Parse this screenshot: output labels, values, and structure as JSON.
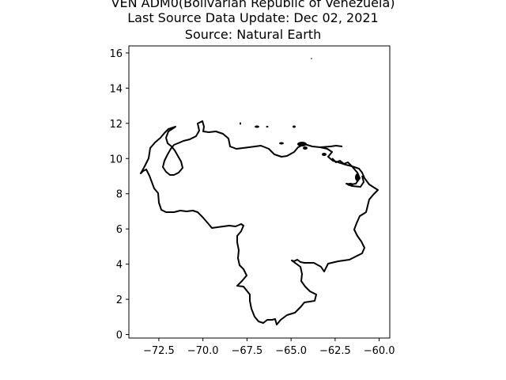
{
  "title": {
    "line1": "VEN ADM0(Bolivarian Republic of Venezuela)",
    "line2": "Last Source Data Update: Dec 02, 2021",
    "line3": "Source: Natural Earth"
  },
  "chart_data": {
    "type": "map",
    "xlim": [
      -74.2,
      -59.4
    ],
    "ylim": [
      -0.2,
      16.4
    ],
    "x_ticks": [
      -72.5,
      -70.0,
      -67.5,
      -65.0,
      -62.5,
      -60.0
    ],
    "x_tick_labels": [
      "−72.5",
      "−70.0",
      "−67.5",
      "−65.0",
      "−62.5",
      "−60.0"
    ],
    "y_ticks": [
      0,
      2,
      4,
      6,
      8,
      10,
      12,
      14,
      16
    ],
    "y_tick_labels": [
      "0",
      "2",
      "4",
      "6",
      "8",
      "10",
      "12",
      "14",
      "16"
    ],
    "outline_color": "#000000"
  }
}
